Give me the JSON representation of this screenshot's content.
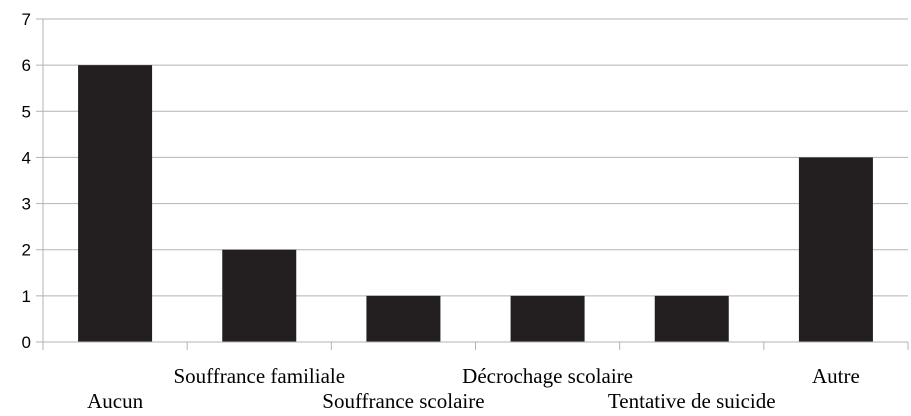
{
  "chart_data": {
    "type": "bar",
    "categories": [
      "Aucun",
      "Souffrance familiale",
      "Souffrance scolaire",
      "Décrochage scolaire",
      "Tentative de suicide",
      "Autre"
    ],
    "values": [
      6,
      2,
      1,
      1,
      1,
      4
    ],
    "ylim": [
      0,
      7
    ],
    "yticks": [
      "0",
      "1",
      "2",
      "3",
      "4",
      "5",
      "6",
      "7"
    ],
    "grid": true,
    "bar_color": "#231f20",
    "grid_color": "#b3b3b3",
    "title": "",
    "xlabel": "",
    "ylabel": ""
  }
}
